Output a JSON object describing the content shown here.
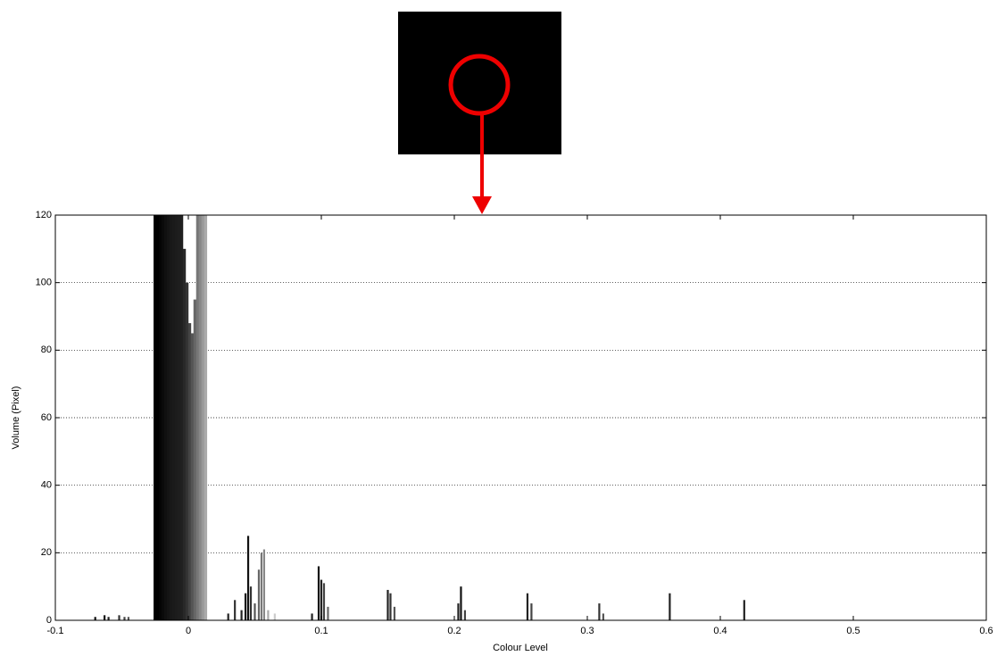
{
  "chart_data": {
    "type": "bar",
    "x": [
      -0.07,
      -0.063,
      -0.06,
      -0.052,
      -0.048,
      -0.045,
      -0.025,
      -0.023,
      -0.021,
      -0.019,
      -0.017,
      -0.015,
      -0.013,
      -0.011,
      -0.009,
      -0.007,
      -0.005,
      -0.003,
      -0.001,
      0.001,
      0.003,
      0.005,
      0.007,
      0.009,
      0.011,
      0.013,
      0.03,
      0.035,
      0.04,
      0.043,
      0.045,
      0.047,
      0.05,
      0.053,
      0.055,
      0.057,
      0.06,
      0.065,
      0.093,
      0.098,
      0.1,
      0.102,
      0.105,
      0.15,
      0.152,
      0.155,
      0.203,
      0.205,
      0.208,
      0.255,
      0.258,
      0.309,
      0.312,
      0.362,
      0.418
    ],
    "values": [
      1,
      1.5,
      1,
      1.5,
      1,
      1,
      120,
      120,
      120,
      120,
      120,
      120,
      120,
      120,
      120,
      120,
      120,
      110,
      100,
      88,
      85,
      95,
      120,
      120,
      120,
      120,
      2,
      6,
      3,
      8,
      25,
      10,
      5,
      15,
      20,
      21,
      3,
      2,
      2,
      16,
      12,
      11,
      4,
      9,
      8,
      4,
      5,
      10,
      3,
      8,
      5,
      5,
      2,
      8,
      6
    ],
    "colors": [
      "#111111",
      "#111111",
      "#222222",
      "#333333",
      "#444444",
      "#555555",
      "#000000",
      "#000000",
      "#050505",
      "#0a0a0a",
      "#101010",
      "#141414",
      "#181818",
      "#1a1a1a",
      "#1c1c1c",
      "#1e1e1e",
      "#202020",
      "#282828",
      "#333333",
      "#444444",
      "#555555",
      "#666666",
      "#777777",
      "#888888",
      "#999999",
      "#aaaaaa",
      "#222222",
      "#333333",
      "#222222",
      "#111111",
      "#111111",
      "#333333",
      "#555555",
      "#666666",
      "#777777",
      "#888888",
      "#aaaaaa",
      "#cccccc",
      "#222222",
      "#111111",
      "#222222",
      "#444444",
      "#666666",
      "#222222",
      "#333333",
      "#555555",
      "#222222",
      "#111111",
      "#444444",
      "#222222",
      "#444444",
      "#333333",
      "#555555",
      "#222222",
      "#222222"
    ],
    "xlabel": "Colour Level",
    "ylabel": "Volume (Pixel)",
    "xlim": [
      -0.1,
      0.6
    ],
    "xticks": [
      -0.1,
      0,
      0.1,
      0.2,
      0.3,
      0.4,
      0.5,
      0.6
    ],
    "ylim": [
      0,
      120
    ],
    "yticks": [
      0,
      20,
      40,
      60,
      80,
      100,
      120
    ],
    "grid": true
  }
}
